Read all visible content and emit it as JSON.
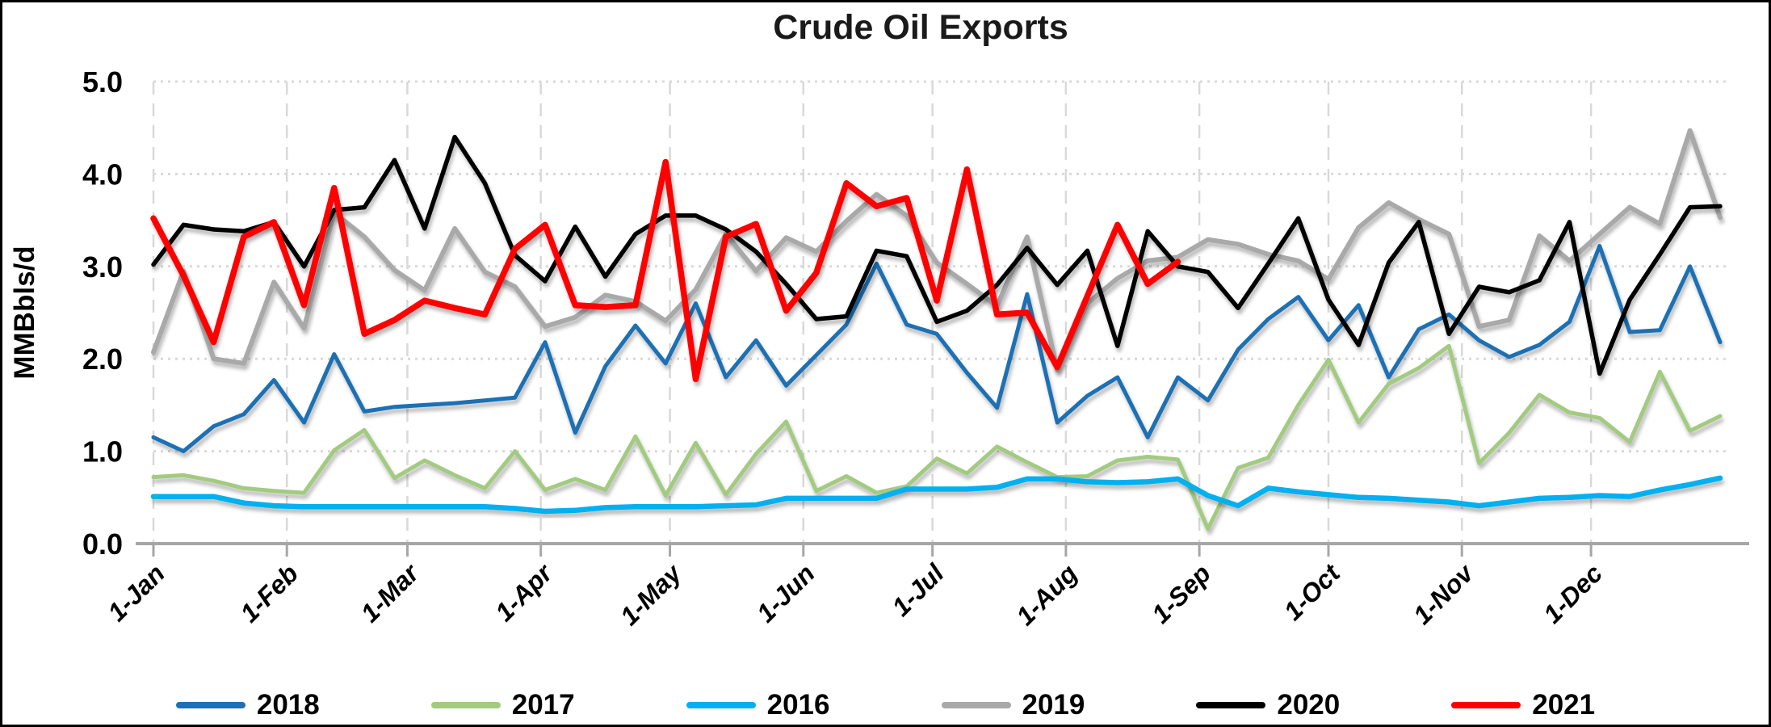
{
  "title": "Crude Oil Exports",
  "y_axis": {
    "label": "MMBbls/d",
    "tick_labels": [
      "0.0",
      "1.0",
      "2.0",
      "3.0",
      "4.0",
      "5.0"
    ],
    "min": 0,
    "max": 5
  },
  "x_axis": {
    "tick_labels": [
      "1-Jan",
      "1-Feb",
      "1-Mar",
      "1-Apr",
      "1-May",
      "1-Jun",
      "1-Jul",
      "1-Aug",
      "1-Sep",
      "1-Oct",
      "1-Nov",
      "1-Dec"
    ],
    "month_start_days": [
      0,
      31,
      59,
      90,
      120,
      151,
      181,
      212,
      243,
      273,
      304,
      334
    ]
  },
  "legend": {
    "items": [
      "2018",
      "2017",
      "2016",
      "2019",
      "2020",
      "2021"
    ]
  },
  "colors": {
    "grid": "#d9d9d9",
    "axis_line": "#a6a6a6",
    "text": "#000000"
  },
  "chart_data": {
    "type": "line",
    "title": "Crude Oil Exports",
    "xlabel": "",
    "ylabel": "MMBbls/d",
    "ylim": [
      0,
      5
    ],
    "grid": true,
    "legend_position": "bottom",
    "x_description": "weekly observations from 1-Jan to 31-Dec (index 0 = 1-Jan, spacing = 7 days)",
    "x_tick_labels": [
      "1-Jan",
      "1-Feb",
      "1-Mar",
      "1-Apr",
      "1-May",
      "1-Jun",
      "1-Jul",
      "1-Aug",
      "1-Sep",
      "1-Oct",
      "1-Nov",
      "1-Dec"
    ],
    "series": [
      {
        "name": "2018",
        "color": "#1f6fb4",
        "values": [
          1.15,
          1.0,
          1.27,
          1.4,
          1.77,
          1.31,
          2.05,
          1.43,
          1.48,
          1.5,
          1.52,
          1.55,
          1.58,
          2.18,
          1.2,
          1.92,
          2.36,
          1.95,
          2.6,
          1.8,
          2.2,
          1.71,
          2.04,
          2.37,
          3.03,
          2.37,
          2.27,
          1.85,
          1.47,
          2.7,
          1.31,
          1.6,
          1.8,
          1.15,
          1.8,
          1.55,
          2.1,
          2.43,
          2.67,
          2.2,
          2.58,
          1.8,
          2.32,
          2.48,
          2.2,
          2.02,
          2.15,
          2.4,
          3.22,
          2.29,
          2.31,
          3.0,
          2.18
        ]
      },
      {
        "name": "2017",
        "color": "#a2cb80",
        "values": [
          0.72,
          0.74,
          0.68,
          0.6,
          0.57,
          0.55,
          1.01,
          1.23,
          0.71,
          0.9,
          0.74,
          0.6,
          1.0,
          0.58,
          0.7,
          0.58,
          1.16,
          0.52,
          1.09,
          0.53,
          0.97,
          1.32,
          0.57,
          0.73,
          0.55,
          0.62,
          0.92,
          0.76,
          1.05,
          0.88,
          0.72,
          0.73,
          0.9,
          0.94,
          0.91,
          0.16,
          0.82,
          0.93,
          1.5,
          1.99,
          1.31,
          1.73,
          1.9,
          2.14,
          0.87,
          1.2,
          1.61,
          1.42,
          1.36,
          1.1,
          1.86,
          1.22,
          1.38
        ]
      },
      {
        "name": "2016",
        "color": "#00b0f0",
        "values": [
          0.51,
          0.51,
          0.51,
          0.44,
          0.41,
          0.4,
          0.4,
          0.4,
          0.4,
          0.4,
          0.4,
          0.4,
          0.38,
          0.35,
          0.36,
          0.39,
          0.4,
          0.4,
          0.4,
          0.41,
          0.42,
          0.49,
          0.49,
          0.49,
          0.49,
          0.59,
          0.59,
          0.59,
          0.61,
          0.7,
          0.7,
          0.67,
          0.66,
          0.67,
          0.7,
          0.52,
          0.41,
          0.6,
          0.56,
          0.53,
          0.5,
          0.49,
          0.47,
          0.45,
          0.41,
          0.45,
          0.49,
          0.5,
          0.52,
          0.51,
          0.58,
          0.64,
          0.71
        ]
      },
      {
        "name": "2019",
        "color": "#a9a9a9",
        "values": [
          2.07,
          2.95,
          2.0,
          1.95,
          2.83,
          2.33,
          3.58,
          3.32,
          2.96,
          2.74,
          3.41,
          2.94,
          2.78,
          2.35,
          2.45,
          2.69,
          2.62,
          2.41,
          2.75,
          3.35,
          2.95,
          3.31,
          3.16,
          3.49,
          3.78,
          3.55,
          3.04,
          2.81,
          2.57,
          3.32,
          1.88,
          2.6,
          2.87,
          3.06,
          3.1,
          3.29,
          3.24,
          3.13,
          3.06,
          2.86,
          3.42,
          3.69,
          3.51,
          3.35,
          2.35,
          2.42,
          3.33,
          3.06,
          3.35,
          3.64,
          3.46,
          4.47,
          3.53
        ]
      },
      {
        "name": "2020",
        "color": "#000000",
        "values": [
          3.02,
          3.45,
          3.4,
          3.38,
          3.48,
          3.0,
          3.61,
          3.64,
          4.15,
          3.41,
          4.4,
          3.9,
          3.12,
          2.84,
          3.43,
          2.89,
          3.35,
          3.55,
          3.55,
          3.4,
          3.16,
          2.81,
          2.43,
          2.46,
          3.17,
          3.11,
          2.4,
          2.52,
          2.8,
          3.2,
          2.8,
          3.17,
          2.14,
          3.38,
          3.0,
          2.94,
          2.55,
          3.03,
          3.52,
          2.64,
          2.15,
          3.04,
          3.48,
          2.27,
          2.78,
          2.72,
          2.85,
          3.48,
          1.84,
          2.64,
          3.13,
          3.64,
          3.65
        ]
      },
      {
        "name": "2021",
        "color": "#ff0000",
        "values": [
          3.52,
          2.9,
          2.18,
          3.32,
          3.48,
          2.58,
          3.85,
          2.27,
          2.42,
          2.63,
          2.55,
          2.48,
          3.19,
          3.45,
          2.58,
          2.56,
          2.58,
          4.13,
          1.78,
          3.32,
          3.46,
          2.52,
          2.93,
          3.9,
          3.65,
          3.74,
          2.63,
          4.05,
          2.48,
          2.5,
          1.91,
          2.68,
          3.45,
          2.81,
          3.05
        ]
      }
    ]
  }
}
